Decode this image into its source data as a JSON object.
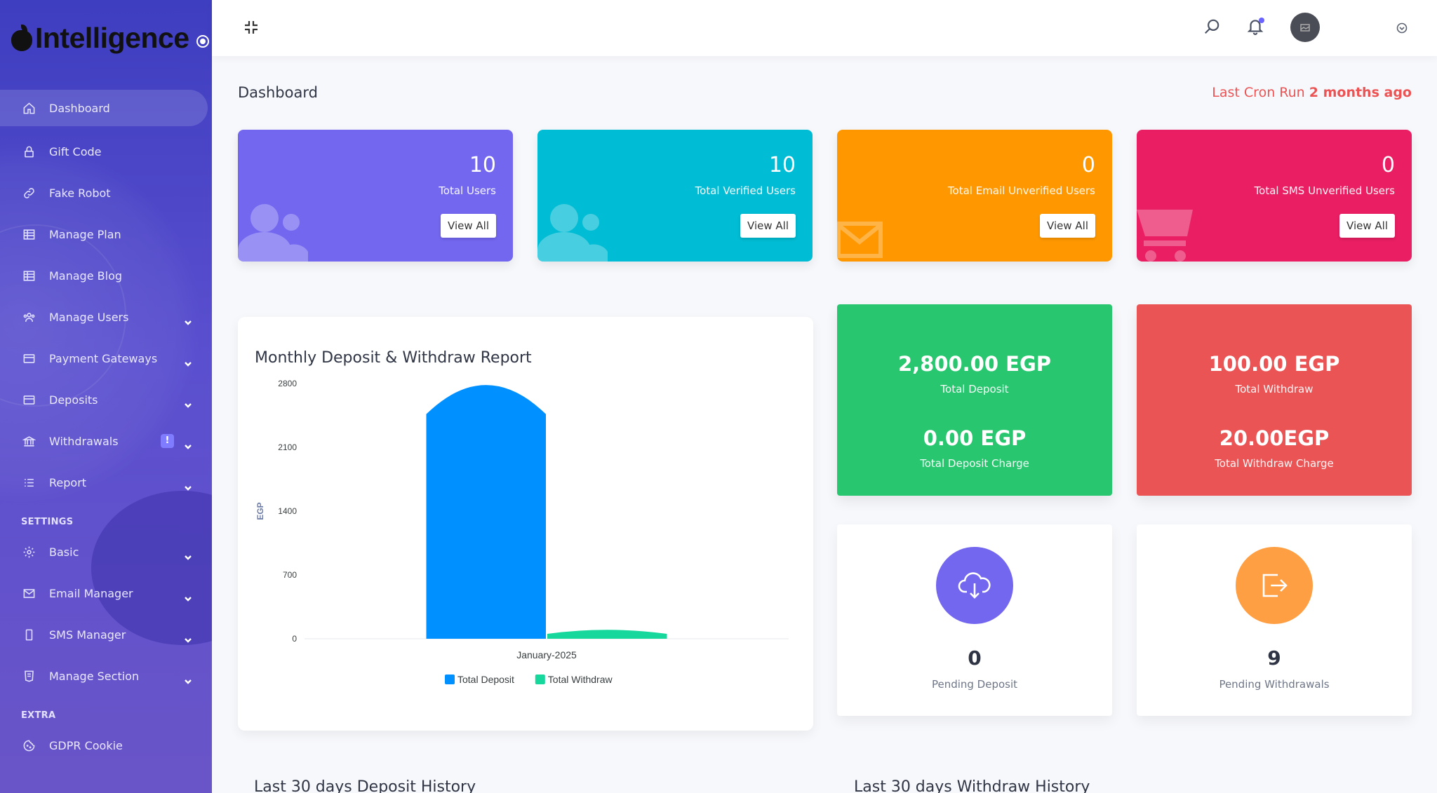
{
  "brand": {
    "name": "Intelligence"
  },
  "sidebar": {
    "items": [
      {
        "label": "Dashboard",
        "icon": "home-icon",
        "active": true
      },
      {
        "label": "Gift Code",
        "icon": "lock-icon"
      },
      {
        "label": "Fake Robot",
        "icon": "link-icon"
      },
      {
        "label": "Manage Plan",
        "icon": "table-icon"
      },
      {
        "label": "Manage Blog",
        "icon": "table-icon"
      },
      {
        "label": "Manage Users",
        "icon": "users-icon",
        "dropdown": true
      },
      {
        "label": "Payment Gateways",
        "icon": "card-icon",
        "dropdown": true
      },
      {
        "label": "Deposits",
        "icon": "card-icon",
        "dropdown": true
      },
      {
        "label": "Withdrawals",
        "icon": "bank-icon",
        "dropdown": true,
        "badge": "!"
      },
      {
        "label": "Report",
        "icon": "list-icon",
        "dropdown": true
      }
    ],
    "settings_label": "SETTINGS",
    "settings_items": [
      {
        "label": "Basic",
        "icon": "gear-icon",
        "dropdown": true
      },
      {
        "label": "Email Manager",
        "icon": "mail-icon",
        "dropdown": true
      },
      {
        "label": "SMS Manager",
        "icon": "phone-icon",
        "dropdown": true
      },
      {
        "label": "Manage Section",
        "icon": "html-icon",
        "dropdown": true
      }
    ],
    "extra_label": "EXTRA",
    "extra_items": [
      {
        "label": "GDPR Cookie",
        "icon": "cookie-icon"
      }
    ]
  },
  "header": {
    "page_title": "Dashboard",
    "cron_prefix": "Last Cron Run",
    "cron_value": "2 months ago"
  },
  "stats": [
    {
      "value": "10",
      "label": "Total Users",
      "button": "View All",
      "color": "#7367f0"
    },
    {
      "value": "10",
      "label": "Total Verified Users",
      "button": "View All",
      "color": "#00bcd4"
    },
    {
      "value": "0",
      "label": "Total Email Unverified Users",
      "button": "View All",
      "color": "#ff9800"
    },
    {
      "value": "0",
      "label": "Total SMS Unverified Users",
      "button": "View All",
      "color": "#e91e63"
    }
  ],
  "chart": {
    "title": "Monthly Deposit & Withdraw Report"
  },
  "chart_data": {
    "type": "bar",
    "categories": [
      "January-2025"
    ],
    "series": [
      {
        "name": "Total Deposit",
        "values": [
          2800
        ],
        "color": "#0090ff"
      },
      {
        "name": "Total Withdraw",
        "values": [
          100
        ],
        "color": "#16d89c"
      }
    ],
    "ylabel": "EGP",
    "ylim": [
      0,
      2800
    ],
    "yticks": [
      0,
      700,
      1400,
      2100,
      2800
    ],
    "legend": "bottom"
  },
  "money": {
    "deposit": {
      "total": "2,800.00 EGP",
      "total_label": "Total Deposit",
      "charge": "0.00 EGP",
      "charge_label": "Total Deposit Charge",
      "color": "#28c76f"
    },
    "withdraw": {
      "total": "100.00 EGP",
      "total_label": "Total Withdraw",
      "charge": "20.00EGP",
      "charge_label": "Total Withdraw Charge",
      "color": "#ea5455"
    }
  },
  "pending": {
    "deposit": {
      "value": "0",
      "label": "Pending Deposit",
      "color": "#7367f0"
    },
    "withdraw": {
      "value": "9",
      "label": "Pending Withdrawals",
      "color": "#ff9f43"
    }
  },
  "bottom": {
    "deposit_history_title": "Last 30 days Deposit History",
    "withdraw_history_title": "Last 30 days Withdraw History"
  }
}
